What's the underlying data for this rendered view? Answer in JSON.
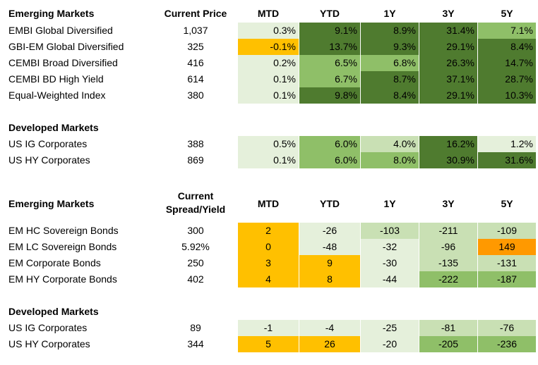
{
  "colors": {
    "gain_dark": "#4f7b2f",
    "gain_mid": "#8fbf68",
    "gain_light": "#c9e0b4",
    "gain_pale": "#e5f0db",
    "alert_amber": "#ffc000",
    "alert_orange": "#ff9900"
  },
  "performance_section": {
    "headers": {
      "title": "Emerging Markets",
      "price": "Current Price",
      "periods": [
        "MTD",
        "YTD",
        "1Y",
        "3Y",
        "5Y"
      ]
    },
    "emerging_rows": [
      {
        "name": "EMBI Global Diversified",
        "price": "1,037",
        "values": [
          "0.3%",
          "9.1%",
          "8.9%",
          "31.4%",
          "7.1%"
        ],
        "shade": [
          "gain_pale",
          "gain_dark",
          "gain_dark",
          "gain_dark",
          "gain_mid"
        ]
      },
      {
        "name": "GBI-EM Global Diversified",
        "price": "325",
        "values": [
          "-0.1%",
          "13.7%",
          "9.3%",
          "29.1%",
          "8.4%"
        ],
        "shade": [
          "alert_amber",
          "gain_dark",
          "gain_dark",
          "gain_dark",
          "gain_dark"
        ]
      },
      {
        "name": "CEMBI Broad Diversified",
        "price": "416",
        "values": [
          "0.2%",
          "6.5%",
          "6.8%",
          "26.3%",
          "14.7%"
        ],
        "shade": [
          "gain_pale",
          "gain_mid",
          "gain_mid",
          "gain_dark",
          "gain_dark"
        ]
      },
      {
        "name": "CEMBI BD High Yield",
        "price": "614",
        "values": [
          "0.1%",
          "6.7%",
          "8.7%",
          "37.1%",
          "28.7%"
        ],
        "shade": [
          "gain_pale",
          "gain_mid",
          "gain_dark",
          "gain_dark",
          "gain_dark"
        ]
      },
      {
        "name": "Equal-Weighted Index",
        "price": "380",
        "values": [
          "0.1%",
          "9.8%",
          "8.4%",
          "29.1%",
          "10.3%"
        ],
        "shade": [
          "gain_pale",
          "gain_dark",
          "gain_dark",
          "gain_dark",
          "gain_dark"
        ]
      }
    ],
    "developed_title": "Developed Markets",
    "developed_rows": [
      {
        "name": "US IG Corporates",
        "price": "388",
        "values": [
          "0.5%",
          "6.0%",
          "4.0%",
          "16.2%",
          "1.2%"
        ],
        "shade": [
          "gain_pale",
          "gain_mid",
          "gain_light",
          "gain_dark",
          "gain_pale"
        ]
      },
      {
        "name": "US HY Corporates",
        "price": "869",
        "values": [
          "0.1%",
          "6.0%",
          "8.0%",
          "30.9%",
          "31.6%"
        ],
        "shade": [
          "gain_pale",
          "gain_mid",
          "gain_mid",
          "gain_dark",
          "gain_dark"
        ]
      }
    ]
  },
  "spread_section": {
    "headers": {
      "title": "Emerging Markets",
      "spread_line1": "Current",
      "spread_line2": "Spread/Yield",
      "periods": [
        "MTD",
        "YTD",
        "1Y",
        "3Y",
        "5Y"
      ]
    },
    "emerging_rows": [
      {
        "name": "EM HC Sovereign Bonds",
        "value": "300",
        "values": [
          "2",
          "-26",
          "-103",
          "-211",
          "-109"
        ],
        "shade": [
          "alert_amber",
          "gain_pale",
          "gain_light",
          "gain_light",
          "gain_light"
        ]
      },
      {
        "name": "EM LC Sovereign Bonds",
        "value": "5.92%",
        "values": [
          "0",
          "-48",
          "-32",
          "-96",
          "149"
        ],
        "shade": [
          "alert_amber",
          "gain_pale",
          "gain_pale",
          "gain_light",
          "alert_orange"
        ]
      },
      {
        "name": "EM Corporate Bonds",
        "value": "250",
        "values": [
          "3",
          "9",
          "-30",
          "-135",
          "-131"
        ],
        "shade": [
          "alert_amber",
          "alert_amber",
          "gain_pale",
          "gain_light",
          "gain_light"
        ]
      },
      {
        "name": "EM HY Corporate Bonds",
        "value": "402",
        "values": [
          "4",
          "8",
          "-44",
          "-222",
          "-187"
        ],
        "shade": [
          "alert_amber",
          "alert_amber",
          "gain_pale",
          "gain_mid",
          "gain_mid"
        ]
      }
    ],
    "developed_title": "Developed Markets",
    "developed_rows": [
      {
        "name": "US IG Corporates",
        "value": "89",
        "values": [
          "-1",
          "-4",
          "-25",
          "-81",
          "-76"
        ],
        "shade": [
          "gain_pale",
          "gain_pale",
          "gain_pale",
          "gain_light",
          "gain_light"
        ]
      },
      {
        "name": "US HY Corporates",
        "value": "344",
        "values": [
          "5",
          "26",
          "-20",
          "-205",
          "-236"
        ],
        "shade": [
          "alert_amber",
          "alert_amber",
          "gain_pale",
          "gain_mid",
          "gain_mid"
        ]
      }
    ]
  }
}
